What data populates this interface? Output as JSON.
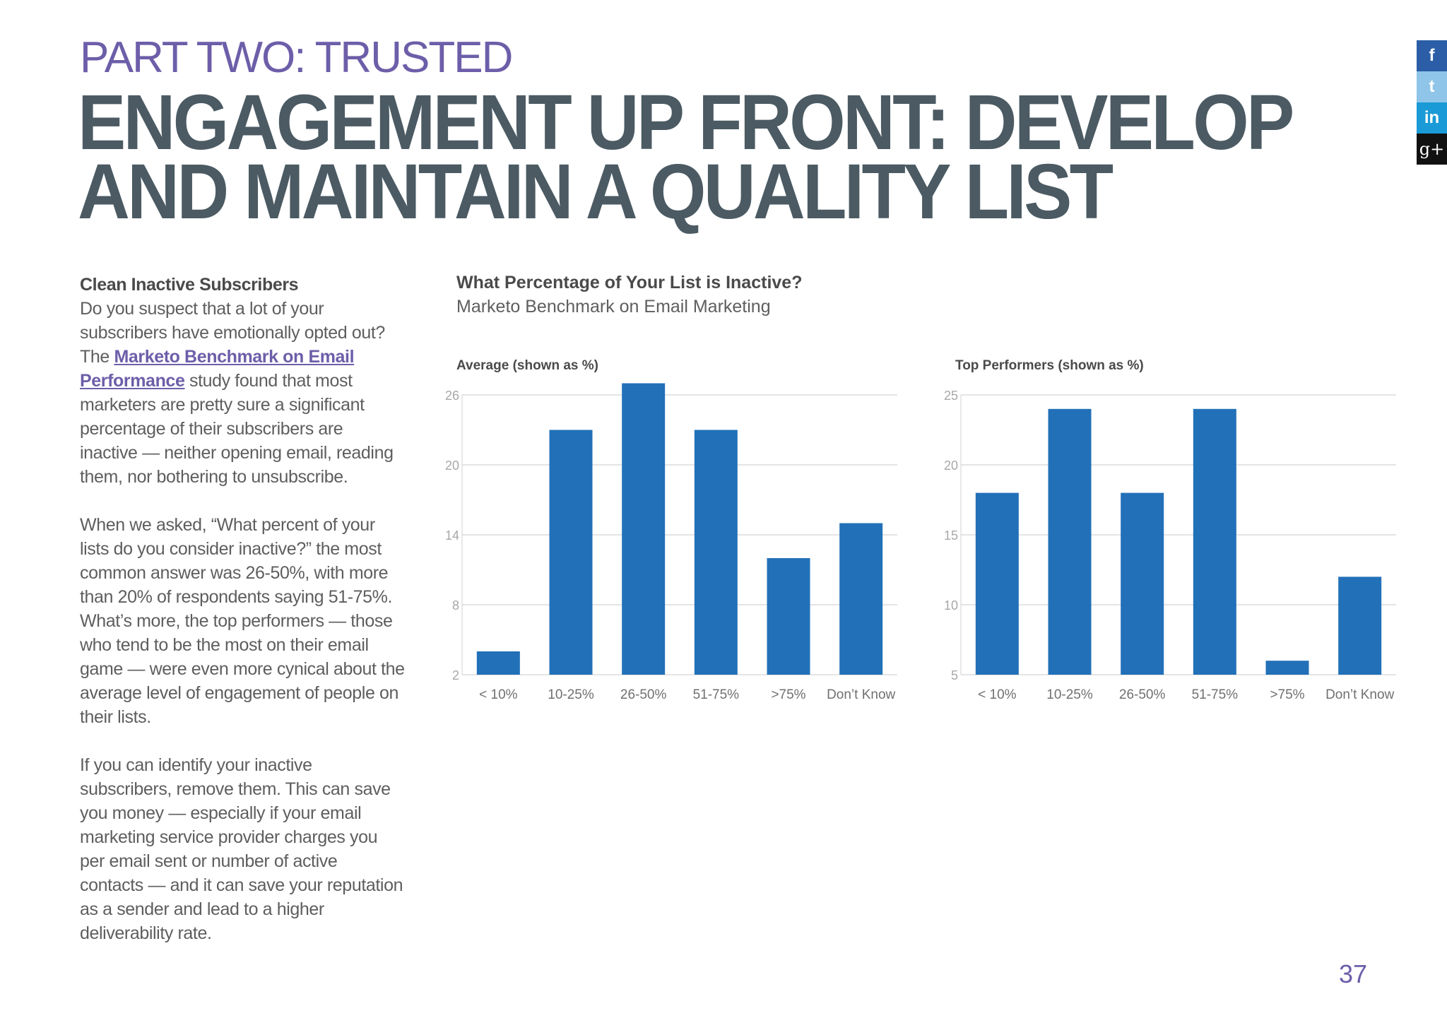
{
  "header": {
    "kicker": "PART TWO: TRUSTED",
    "headline_line1": "ENGAGEMENT UP FRONT: DEVELOP",
    "headline_line2": "AND MAINTAIN A QUALITY LIST"
  },
  "body": {
    "section_heading": "Clean Inactive Subscribers",
    "p1_before": "Do you suspect that a lot of your subscribers have emotionally opted out? The ",
    "p1_link": "Marketo Benchmark on Email Performance",
    "p1_after": " study found that most marketers are pretty sure a significant percentage of their subscribers are inactive — neither opening email, reading them, nor bothering to unsubscribe.",
    "p2": "When we asked, “What percent of your lists do you consider inactive?” the most common answer was 26-50%, with more than 20% of respondents saying 51-75%. What’s more, the top performers — those who tend to be the most on their email game — were even more cynical about the average level of engagement of people on their lists.",
    "p3": "If you can identify your inactive subscribers, remove them. This can save you money — especially if your email marketing service provider charges you per email sent or number of active contacts — and it can save your reputation as a sender and lead to a higher deliverability rate."
  },
  "chart_section": {
    "title": "What Percentage of Your List is Inactive?",
    "subtitle": "Marketo Benchmark on Email Marketing"
  },
  "chart_data": [
    {
      "type": "bar",
      "title": "Average (shown as %)",
      "categories": [
        "< 10%",
        "10-25%",
        "26-50%",
        "51-75%",
        ">75%",
        "Don’t Know"
      ],
      "values": [
        4,
        23,
        27,
        23,
        12,
        15
      ],
      "yticks": [
        2,
        8,
        14,
        20,
        26
      ],
      "ylim": [
        2,
        26
      ],
      "grid": true,
      "bar_color": "#2270b8"
    },
    {
      "type": "bar",
      "title": "Top Performers (shown as %)",
      "categories": [
        "< 10%",
        "10-25%",
        "26-50%",
        "51-75%",
        ">75%",
        "Don’t Know"
      ],
      "values": [
        18,
        24,
        18,
        24,
        6,
        12
      ],
      "yticks": [
        5,
        10,
        15,
        20,
        25
      ],
      "ylim": [
        5,
        25
      ],
      "grid": true,
      "bar_color": "#2270b8"
    }
  ],
  "social": {
    "facebook": "f",
    "twitter": "t",
    "linkedin": "in",
    "googleplus": "g+"
  },
  "footer": {
    "page_number": "37"
  }
}
